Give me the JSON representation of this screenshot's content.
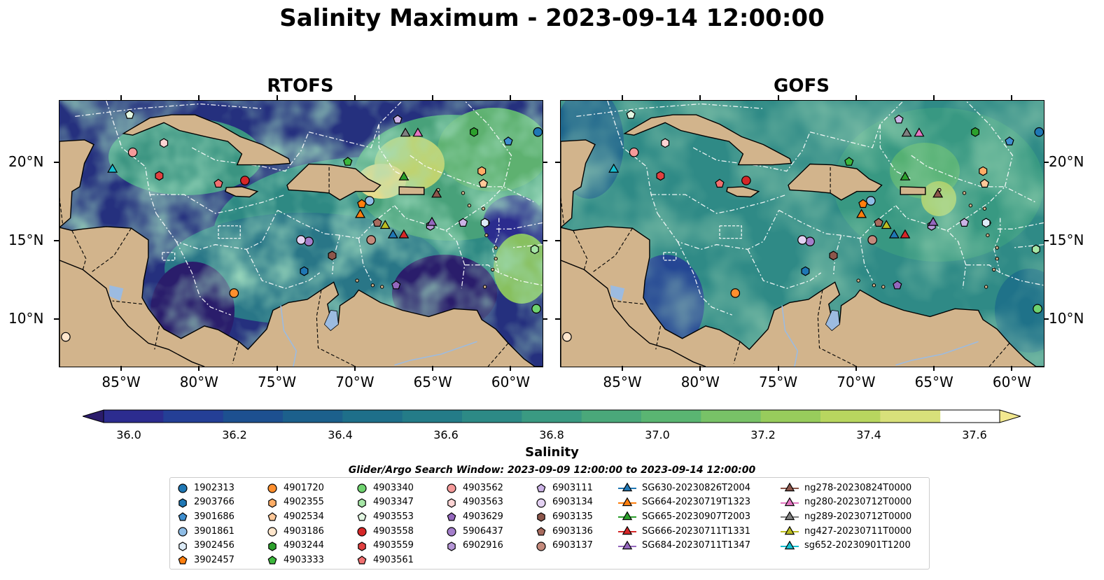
{
  "title": "Salinity Maximum - 2023-09-14 12:00:00",
  "panels": [
    {
      "title": "RTOFS",
      "style": "rtofs"
    },
    {
      "title": "GOFS",
      "style": "gofs"
    }
  ],
  "map": {
    "lon_range": [
      -89,
      -58
    ],
    "lat_range": [
      7,
      24
    ],
    "lon_ticks": [
      {
        "value": -85,
        "label": "85°W"
      },
      {
        "value": -80,
        "label": "80°W"
      },
      {
        "value": -75,
        "label": "75°W"
      },
      {
        "value": -70,
        "label": "70°W"
      },
      {
        "value": -65,
        "label": "65°W"
      },
      {
        "value": -60,
        "label": "60°W"
      }
    ],
    "lat_ticks": [
      {
        "value": 20,
        "label": "20°N"
      },
      {
        "value": 15,
        "label": "15°N"
      },
      {
        "value": 10,
        "label": "10°N"
      }
    ],
    "land_color": "#d2b48c",
    "lake_color": "#9cbbe0"
  },
  "colorbar": {
    "label": "Salinity",
    "ticks": [
      "36.0",
      "36.2",
      "36.4",
      "36.6",
      "36.8",
      "37.0",
      "37.2",
      "37.4",
      "37.6"
    ],
    "colors": [
      "#2b1c6b",
      "#2c2c8f",
      "#243f96",
      "#1d5090",
      "#1c608c",
      "#1e6f8a",
      "#247c88",
      "#2d8a86",
      "#3a9a82",
      "#4aa87a",
      "#5ab572",
      "#78c267",
      "#98cc5c",
      "#b8d65f",
      "#d8e07a",
      "#f2e88f"
    ]
  },
  "legend": {
    "title": "Glider/Argo Search Window: 2023-09-09 12:00:00 to 2023-09-14 12:00:00",
    "columns": [
      [
        {
          "label": "1902313",
          "shape": "circle",
          "color": "#1f77b4"
        },
        {
          "label": "2903766",
          "shape": "hexagon",
          "color": "#1f77b4"
        },
        {
          "label": "3901686",
          "shape": "pentagon",
          "color": "#3f8fd0"
        },
        {
          "label": "3901861",
          "shape": "circle",
          "color": "#8fbde6"
        },
        {
          "label": "3902456",
          "shape": "hexagon",
          "color": "#dcebf7"
        },
        {
          "label": "3902457",
          "shape": "pentagon",
          "color": "#ff7f0e"
        }
      ],
      [
        {
          "label": "4901720",
          "shape": "circle",
          "color": "#ff8f2e"
        },
        {
          "label": "4902355",
          "shape": "hexagon",
          "color": "#ffad66"
        },
        {
          "label": "4902534",
          "shape": "pentagon",
          "color": "#ffc899"
        },
        {
          "label": "4903186",
          "shape": "circle",
          "color": "#ffe6cc"
        },
        {
          "label": "4903244",
          "shape": "hexagon",
          "color": "#2ca02c"
        },
        {
          "label": "4903333",
          "shape": "pentagon",
          "color": "#3cb83c"
        }
      ],
      [
        {
          "label": "4903340",
          "shape": "circle",
          "color": "#6fd36f"
        },
        {
          "label": "4903347",
          "shape": "hexagon",
          "color": "#a6e6a6"
        },
        {
          "label": "4903553",
          "shape": "pentagon",
          "color": "#e3f7e3"
        },
        {
          "label": "4903558",
          "shape": "circle",
          "color": "#d62728"
        },
        {
          "label": "4903559",
          "shape": "hexagon",
          "color": "#e04040"
        },
        {
          "label": "4903561",
          "shape": "pentagon",
          "color": "#f07070"
        }
      ],
      [
        {
          "label": "4903562",
          "shape": "circle",
          "color": "#f59a9a"
        },
        {
          "label": "4903563",
          "shape": "hexagon",
          "color": "#fcd4d4"
        },
        {
          "label": "4903629",
          "shape": "pentagon",
          "color": "#9467bd"
        },
        {
          "label": "5906437",
          "shape": "circle",
          "color": "#a47ecb"
        },
        {
          "label": "6902916",
          "shape": "hexagon",
          "color": "#b596d6"
        }
      ],
      [
        {
          "label": "6903111",
          "shape": "pentagon",
          "color": "#ccb3e6"
        },
        {
          "label": "6903134",
          "shape": "circle",
          "color": "#e3d1f2"
        },
        {
          "label": "6903135",
          "shape": "hexagon",
          "color": "#8c564b"
        },
        {
          "label": "6903136",
          "shape": "pentagon",
          "color": "#a86b5e"
        },
        {
          "label": "6903137",
          "shape": "circle",
          "color": "#c48a7c"
        }
      ],
      [
        {
          "label": "SG630-20230826T2004",
          "shape": "triangle",
          "color": "#1f77b4"
        },
        {
          "label": "SG664-20230719T1323",
          "shape": "triangle",
          "color": "#ff7f0e"
        },
        {
          "label": "SG665-20230907T2003",
          "shape": "triangle",
          "color": "#2ca02c"
        },
        {
          "label": "SG666-20230711T1331",
          "shape": "triangle",
          "color": "#d62728"
        },
        {
          "label": "SG684-20230711T1347",
          "shape": "triangle",
          "color": "#9467bd"
        }
      ],
      [
        {
          "label": "ng278-20230824T0000",
          "shape": "triangle",
          "color": "#8c564b"
        },
        {
          "label": "ng280-20230712T0000",
          "shape": "triangle",
          "color": "#e377c2"
        },
        {
          "label": "ng289-20230712T0000",
          "shape": "triangle",
          "color": "#7f7f7f"
        },
        {
          "label": "ng427-20230711T0000",
          "shape": "triangle",
          "color": "#bcbd22"
        },
        {
          "label": "sg652-20230901T1200",
          "shape": "triangle",
          "color": "#17becf"
        }
      ]
    ]
  },
  "markers": [
    {
      "lon": -58.3,
      "lat": 22.0,
      "shape": "circle",
      "color": "#1f77b4"
    },
    {
      "lon": -60.2,
      "lat": 21.4,
      "shape": "pentagon",
      "color": "#3f8fd0"
    },
    {
      "lon": -69.1,
      "lat": 17.6,
      "shape": "circle",
      "color": "#8fbde6"
    },
    {
      "lon": -73.3,
      "lat": 13.1,
      "shape": "hexagon",
      "color": "#1f77b4"
    },
    {
      "lon": -61.7,
      "lat": 16.2,
      "shape": "hexagon",
      "color": "#dcebf7"
    },
    {
      "lon": -69.6,
      "lat": 17.4,
      "shape": "pentagon",
      "color": "#ff7f0e"
    },
    {
      "lon": -77.8,
      "lat": 11.7,
      "shape": "circle",
      "color": "#ff8f2e"
    },
    {
      "lon": -61.9,
      "lat": 19.5,
      "shape": "hexagon",
      "color": "#ffad66"
    },
    {
      "lon": -61.8,
      "lat": 18.7,
      "shape": "pentagon",
      "color": "#ffc899"
    },
    {
      "lon": -88.6,
      "lat": 8.9,
      "shape": "circle",
      "color": "#ffe6cc"
    },
    {
      "lon": -71.5,
      "lat": 14.1,
      "shape": "hexagon",
      "color": "#8c564b"
    },
    {
      "lon": -62.4,
      "lat": 22.0,
      "shape": "hexagon",
      "color": "#2ca02c"
    },
    {
      "lon": -70.5,
      "lat": 20.1,
      "shape": "pentagon",
      "color": "#3cb83c"
    },
    {
      "lon": -58.4,
      "lat": 10.7,
      "shape": "circle",
      "color": "#6fd36f"
    },
    {
      "lon": -58.5,
      "lat": 14.5,
      "shape": "hexagon",
      "color": "#a6e6a6"
    },
    {
      "lon": -84.5,
      "lat": 23.1,
      "shape": "pentagon",
      "color": "#e3f7e3"
    },
    {
      "lon": -77.1,
      "lat": 18.9,
      "shape": "circle",
      "color": "#d62728"
    },
    {
      "lon": -82.6,
      "lat": 19.2,
      "shape": "hexagon",
      "color": "#e04040"
    },
    {
      "lon": -78.8,
      "lat": 18.7,
      "shape": "pentagon",
      "color": "#f07070"
    },
    {
      "lon": -84.3,
      "lat": 20.7,
      "shape": "circle",
      "color": "#f59a9a"
    },
    {
      "lon": -82.3,
      "lat": 21.3,
      "shape": "hexagon",
      "color": "#fcd4d4"
    },
    {
      "lon": -67.4,
      "lat": 12.2,
      "shape": "pentagon",
      "color": "#9467bd"
    },
    {
      "lon": -73.0,
      "lat": 15.0,
      "shape": "circle",
      "color": "#a47ecb"
    },
    {
      "lon": -65.2,
      "lat": 16.0,
      "shape": "hexagon",
      "color": "#b596d6"
    },
    {
      "lon": -63.1,
      "lat": 16.2,
      "shape": "pentagon",
      "color": "#ccb3e6"
    },
    {
      "lon": -73.5,
      "lat": 15.1,
      "shape": "circle",
      "color": "#e3d1f2"
    },
    {
      "lon": -67.3,
      "lat": 22.8,
      "shape": "pentagon",
      "color": "#ccb3e6"
    },
    {
      "lon": -68.6,
      "lat": 16.2,
      "shape": "pentagon",
      "color": "#a86b5e"
    },
    {
      "lon": -69.0,
      "lat": 15.1,
      "shape": "circle",
      "color": "#c48a7c"
    },
    {
      "lon": -67.6,
      "lat": 15.4,
      "shape": "triangle",
      "color": "#1f77b4"
    },
    {
      "lon": -69.7,
      "lat": 16.7,
      "shape": "triangle",
      "color": "#ff7f0e"
    },
    {
      "lon": -66.9,
      "lat": 19.1,
      "shape": "triangle",
      "color": "#2ca02c"
    },
    {
      "lon": -66.9,
      "lat": 15.4,
      "shape": "triangle",
      "color": "#d62728"
    },
    {
      "lon": -65.1,
      "lat": 16.2,
      "shape": "triangle",
      "color": "#9467bd"
    },
    {
      "lon": -64.8,
      "lat": 18.0,
      "shape": "triangle",
      "color": "#8c564b"
    },
    {
      "lon": -66.0,
      "lat": 21.9,
      "shape": "triangle",
      "color": "#e377c2"
    },
    {
      "lon": -66.8,
      "lat": 21.9,
      "shape": "triangle",
      "color": "#7f7f7f"
    },
    {
      "lon": -68.1,
      "lat": 16.0,
      "shape": "triangle",
      "color": "#bcbd22"
    },
    {
      "lon": -85.6,
      "lat": 19.6,
      "shape": "triangle",
      "color": "#17becf"
    }
  ]
}
